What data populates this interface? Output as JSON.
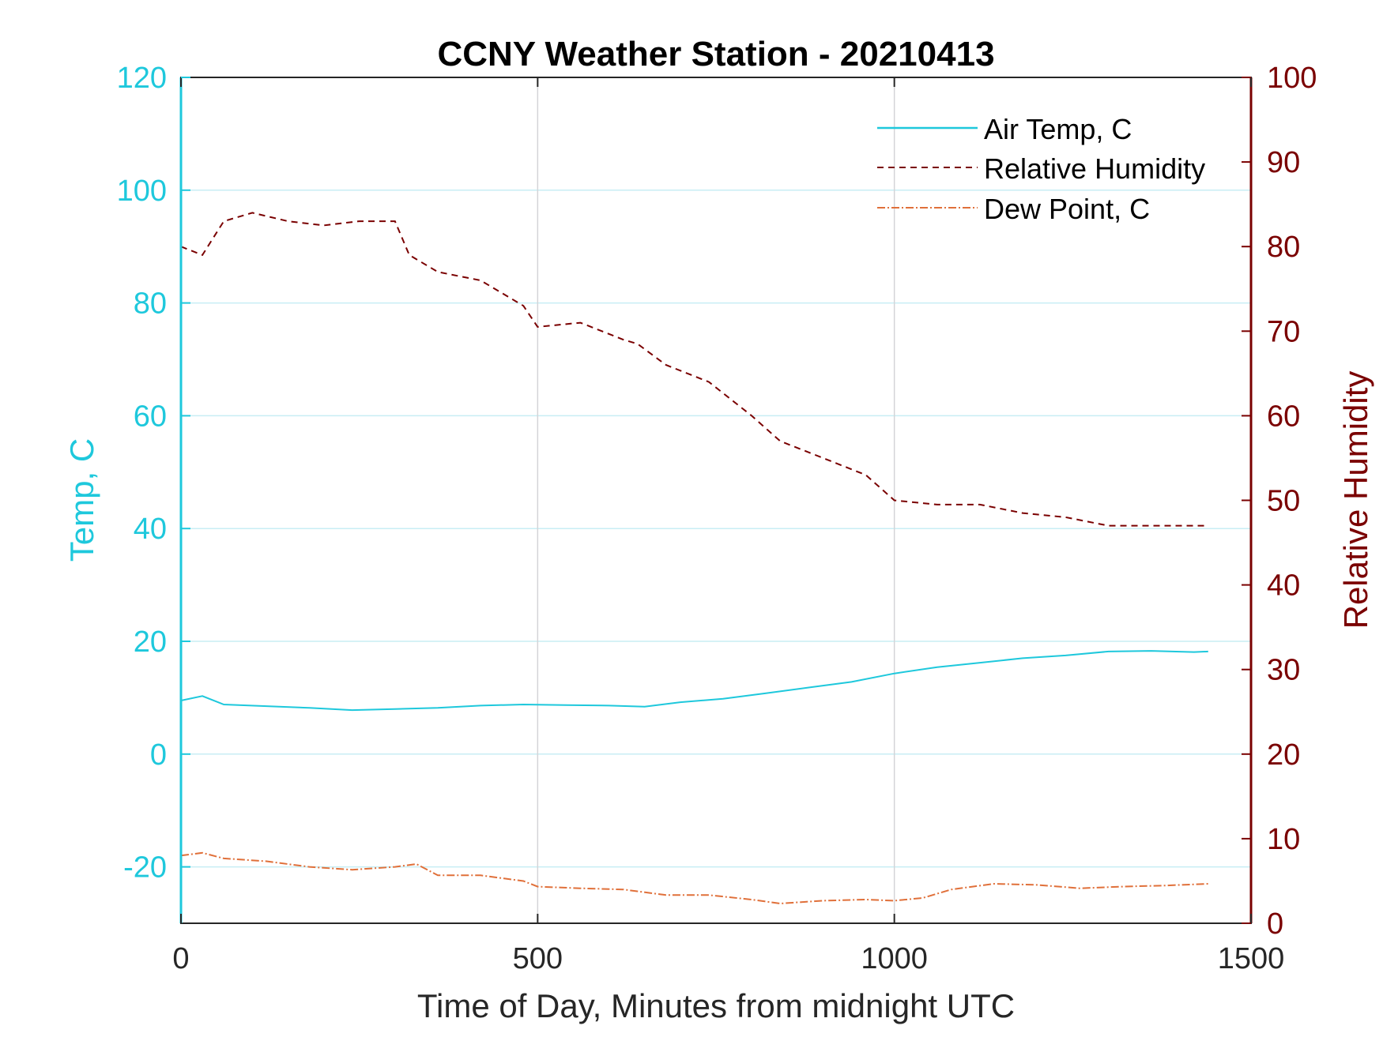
{
  "chart_data": {
    "type": "line",
    "title": "CCNY Weather Station - 20210413",
    "xlabel": "Time of Day, Minutes from midnight UTC",
    "ylabel_left": "Temp, C",
    "ylabel_right": "Relative Humidity",
    "xlim": [
      0,
      1500
    ],
    "ylim_left": [
      -30,
      120
    ],
    "ylim_right": [
      0,
      100
    ],
    "xticks": [
      0,
      500,
      1000,
      1500
    ],
    "yticks_left": [
      -20,
      0,
      20,
      40,
      60,
      80,
      100,
      120
    ],
    "yticks_right": [
      0,
      10,
      20,
      30,
      40,
      50,
      60,
      70,
      80,
      90,
      100
    ],
    "grid": true,
    "legend_position": "top-right",
    "colors": {
      "left_axis": "#1ec8dc",
      "right_axis": "#7a0000",
      "temp": "#1ec8dc",
      "rh": "#7a0000",
      "dew": "#e0703a"
    },
    "series": [
      {
        "name": "Air Temp, C",
        "axis": "left",
        "style": "solid",
        "color": "#1ec8dc",
        "x": [
          0,
          30,
          60,
          120,
          180,
          240,
          300,
          360,
          420,
          480,
          540,
          600,
          650,
          700,
          760,
          820,
          880,
          940,
          1000,
          1060,
          1120,
          1180,
          1240,
          1300,
          1360,
          1420,
          1440
        ],
        "y": [
          9.5,
          10.3,
          8.8,
          8.5,
          8.2,
          7.8,
          8.0,
          8.2,
          8.6,
          8.8,
          8.7,
          8.6,
          8.4,
          9.2,
          9.8,
          10.8,
          11.8,
          12.8,
          14.3,
          15.4,
          16.2,
          17.0,
          17.5,
          18.2,
          18.3,
          18.1,
          18.2
        ]
      },
      {
        "name": "Relative Humidity",
        "axis": "right",
        "style": "dashed",
        "color": "#7a0000",
        "x": [
          0,
          30,
          60,
          100,
          150,
          200,
          250,
          300,
          320,
          360,
          420,
          480,
          500,
          560,
          620,
          640,
          680,
          740,
          800,
          840,
          900,
          960,
          1000,
          1060,
          1120,
          1180,
          1240,
          1300,
          1360,
          1440
        ],
        "y": [
          80,
          79,
          83,
          84,
          83,
          82.5,
          83,
          83,
          79,
          77,
          76,
          73,
          70.5,
          71,
          69,
          68.5,
          66,
          64,
          60,
          57,
          55,
          53,
          50,
          49.5,
          49.5,
          48.5,
          48,
          47,
          47,
          47
        ]
      },
      {
        "name": "Dew Point, C",
        "axis": "left",
        "style": "dashdot",
        "color": "#e0703a",
        "x": [
          0,
          30,
          60,
          120,
          180,
          240,
          300,
          330,
          360,
          420,
          480,
          500,
          560,
          620,
          680,
          740,
          800,
          840,
          900,
          960,
          1000,
          1040,
          1080,
          1140,
          1200,
          1260,
          1320,
          1380,
          1440
        ],
        "y": [
          -18,
          -17.5,
          -18.5,
          -19,
          -20,
          -20.5,
          -20,
          -19.5,
          -21.5,
          -21.5,
          -22.5,
          -23.5,
          -23.8,
          -24,
          -25,
          -25,
          -25.8,
          -26.5,
          -26,
          -25.8,
          -26,
          -25.5,
          -24,
          -23,
          -23.2,
          -23.8,
          -23.5,
          -23.3,
          -23
        ]
      }
    ]
  }
}
